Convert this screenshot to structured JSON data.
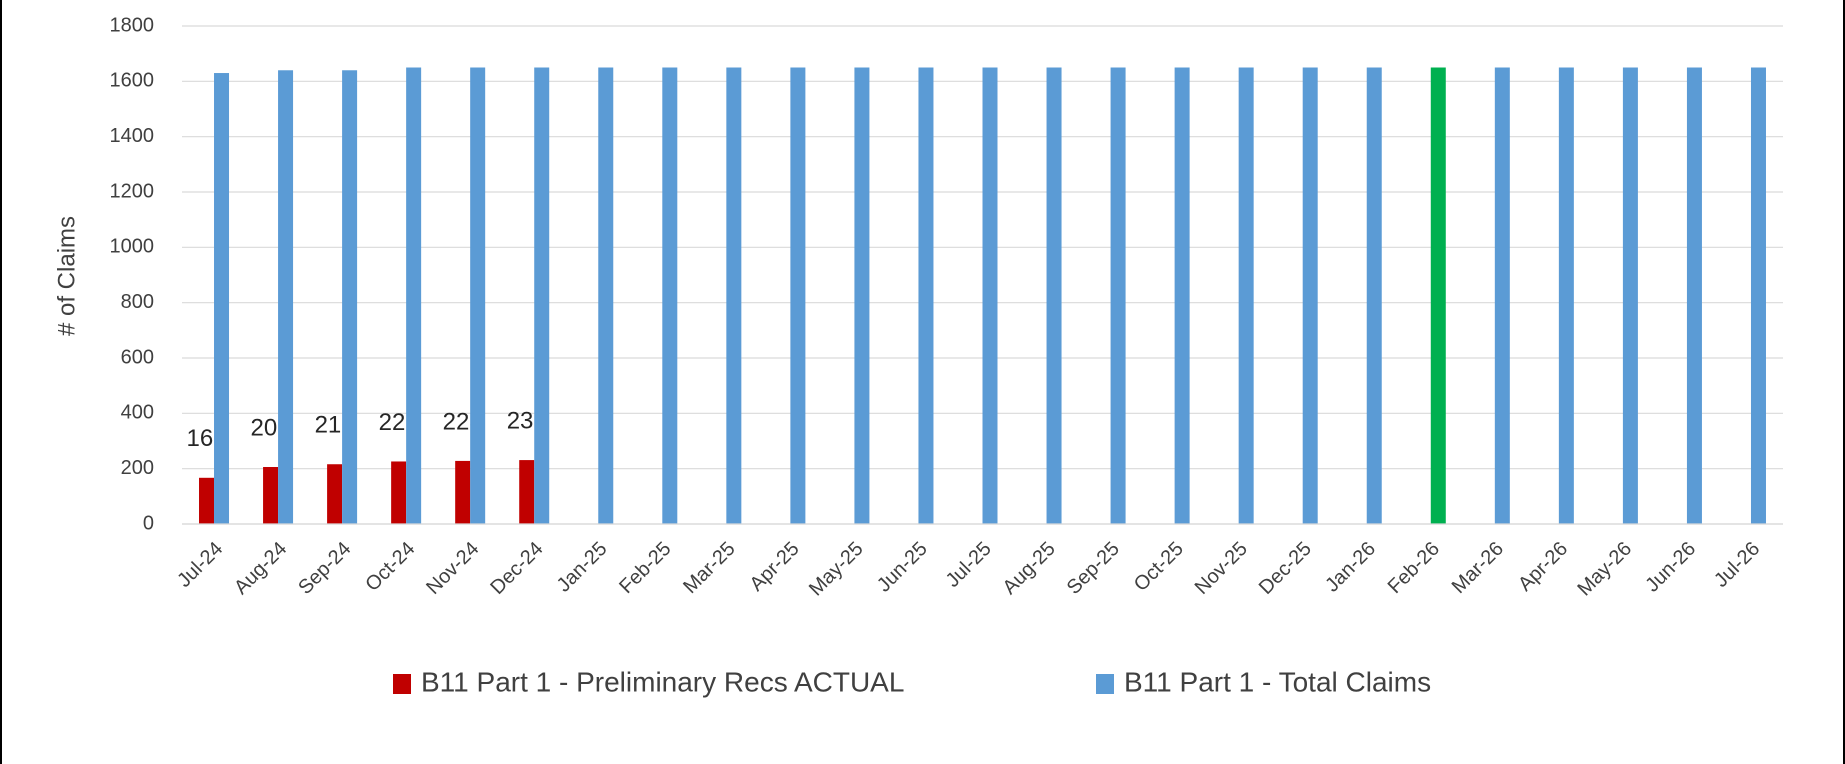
{
  "chart_data": {
    "type": "bar",
    "y_label": "# of Claims",
    "categories": [
      "Jul-24",
      "Aug-24",
      "Sep-24",
      "Oct-24",
      "Nov-24",
      "Dec-24",
      "Jan-25",
      "Feb-25",
      "Mar-25",
      "Apr-25",
      "May-25",
      "Jun-25",
      "Jul-25",
      "Aug-25",
      "Sep-25",
      "Oct-25",
      "Nov-25",
      "Dec-25",
      "Jan-26",
      "Feb-26",
      "Mar-26",
      "Apr-26",
      "May-26",
      "Jun-26",
      "Jul-26"
    ],
    "series": [
      {
        "name": "B11 Part 1 - Preliminary Recs ACTUAL",
        "color": "#c00000",
        "values": [
          167,
          206,
          216,
          226,
          228,
          231,
          null,
          null,
          null,
          null,
          null,
          null,
          null,
          null,
          null,
          null,
          null,
          null,
          null,
          null,
          null,
          null,
          null,
          null,
          null
        ]
      },
      {
        "name": "B11 Part 1 - Total Claims",
        "color": "#5b9bd5",
        "point_colors": [
          "#5b9bd5",
          "#5b9bd5",
          "#5b9bd5",
          "#5b9bd5",
          "#5b9bd5",
          "#5b9bd5",
          "#5b9bd5",
          "#5b9bd5",
          "#5b9bd5",
          "#5b9bd5",
          "#5b9bd5",
          "#5b9bd5",
          "#5b9bd5",
          "#5b9bd5",
          "#5b9bd5",
          "#5b9bd5",
          "#5b9bd5",
          "#5b9bd5",
          "#5b9bd5",
          "#00b050",
          "#5b9bd5",
          "#5b9bd5",
          "#5b9bd5",
          "#5b9bd5",
          "#5b9bd5"
        ],
        "values": [
          1630,
          1640,
          1640,
          1650,
          1650,
          1650,
          1650,
          1650,
          1650,
          1650,
          1650,
          1650,
          1650,
          1650,
          1650,
          1650,
          1650,
          1650,
          1650,
          1650,
          1650,
          1650,
          1650,
          1650,
          1650
        ]
      }
    ],
    "ylim": [
      0,
      1800
    ],
    "yticks": [
      0,
      200,
      400,
      600,
      800,
      1000,
      1200,
      1400,
      1600,
      1800
    ],
    "grid": true,
    "data_labels_series": [
      0
    ],
    "legend": "bottom"
  }
}
